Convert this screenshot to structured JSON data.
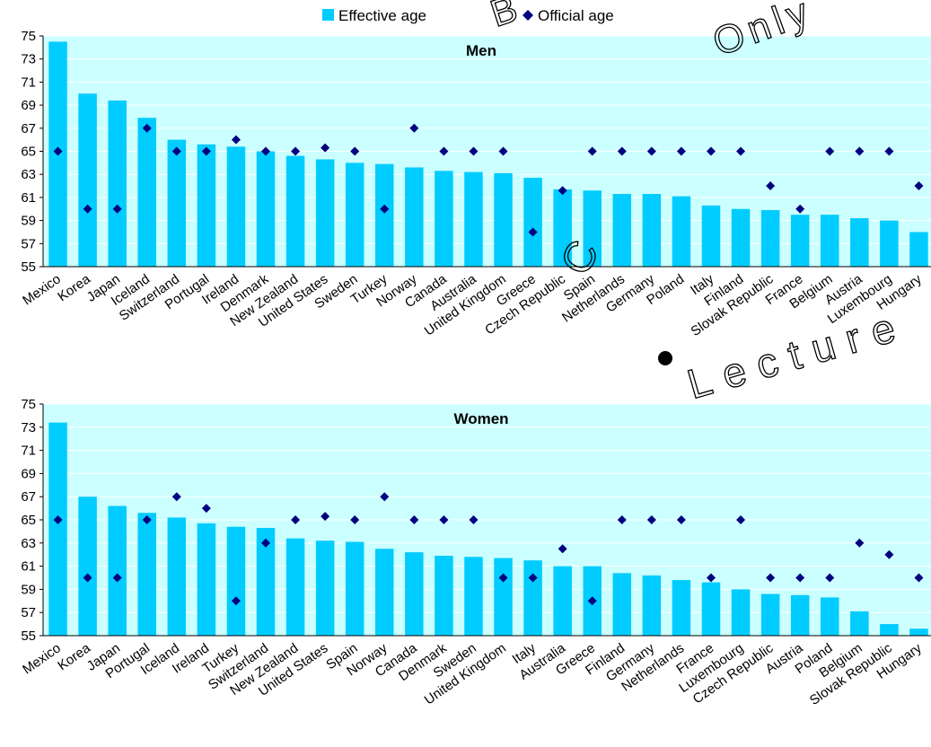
{
  "legend": {
    "effective_label": "Effective age",
    "official_label": "Official age"
  },
  "colors": {
    "bar": "#00ccff",
    "marker": "#000080",
    "plot_bg": "#ccffff",
    "grid": "#ffffff"
  },
  "watermark": {
    "top_text": "B",
    "top_text_2": "Only",
    "mid_text": "C",
    "lecture_text": "Lecture"
  },
  "chart_data": [
    {
      "type": "bar",
      "title": "Men",
      "ylim": [
        55,
        75
      ],
      "yticks": [
        55,
        57,
        59,
        61,
        63,
        65,
        67,
        69,
        71,
        73,
        75
      ],
      "grid": true,
      "legend_position": "top-center",
      "categories": [
        "Mexico",
        "Korea",
        "Japan",
        "Iceland",
        "Switzerland",
        "Portugal",
        "Ireland",
        "Denmark",
        "New Zealand",
        "United States",
        "Sweden",
        "Turkey",
        "Norway",
        "Canada",
        "Australia",
        "United Kingdom",
        "Greece",
        "Czech Republic",
        "Spain",
        "Netherlands",
        "Germany",
        "Poland",
        "Italy",
        "Finland",
        "Slovak Republic",
        "France",
        "Belgium",
        "Austria",
        "Luxembourg",
        "Hungary"
      ],
      "series": [
        {
          "name": "Effective age",
          "kind": "bar",
          "values": [
            74.5,
            70.0,
            69.4,
            67.9,
            66.0,
            65.6,
            65.4,
            65.0,
            64.6,
            64.3,
            64.0,
            63.9,
            63.6,
            63.3,
            63.2,
            63.1,
            62.7,
            61.7,
            61.6,
            61.3,
            61.3,
            61.1,
            60.3,
            60.0,
            59.9,
            59.5,
            59.5,
            59.2,
            59.0,
            58.0
          ]
        },
        {
          "name": "Official age",
          "kind": "marker",
          "values": [
            65,
            60,
            60,
            67,
            65,
            65,
            66,
            65,
            65,
            65.3,
            65,
            60,
            67,
            65,
            65,
            65,
            58,
            61.6,
            65,
            65,
            65,
            65,
            65,
            65,
            62,
            60,
            65,
            65,
            65,
            62
          ]
        }
      ]
    },
    {
      "type": "bar",
      "title": "Women",
      "ylim": [
        55,
        75
      ],
      "yticks": [
        55,
        57,
        59,
        61,
        63,
        65,
        67,
        69,
        71,
        73,
        75
      ],
      "grid": true,
      "categories": [
        "Mexico",
        "Korea",
        "Japan",
        "Portugal",
        "Iceland",
        "Ireland",
        "Turkey",
        "Switzerland",
        "New Zealand",
        "United States",
        "Spain",
        "Norway",
        "Canada",
        "Denmark",
        "Sweden",
        "United Kingdom",
        "Italy",
        "Australia",
        "Greece",
        "Finland",
        "Germany",
        "Netherlands",
        "France",
        "Luxembourg",
        "Czech Republic",
        "Austria",
        "Poland",
        "Belgium",
        "Slovak Republic",
        "Hungary"
      ],
      "series": [
        {
          "name": "Effective age",
          "kind": "bar",
          "values": [
            73.4,
            67.0,
            66.2,
            65.6,
            65.2,
            64.7,
            64.4,
            64.3,
            63.4,
            63.2,
            63.1,
            62.5,
            62.2,
            61.9,
            61.8,
            61.7,
            61.5,
            61.0,
            61.0,
            60.4,
            60.2,
            59.8,
            59.6,
            59.0,
            58.6,
            58.5,
            58.3,
            57.1,
            56.0,
            55.6
          ]
        },
        {
          "name": "Official age",
          "kind": "marker",
          "values": [
            65,
            60,
            60,
            65,
            67,
            66,
            58,
            63,
            65,
            65.3,
            65,
            67,
            65,
            65,
            65,
            60,
            60,
            62.5,
            58,
            65,
            65,
            65,
            60,
            65,
            60,
            60,
            60,
            63,
            62,
            60
          ]
        }
      ]
    }
  ]
}
